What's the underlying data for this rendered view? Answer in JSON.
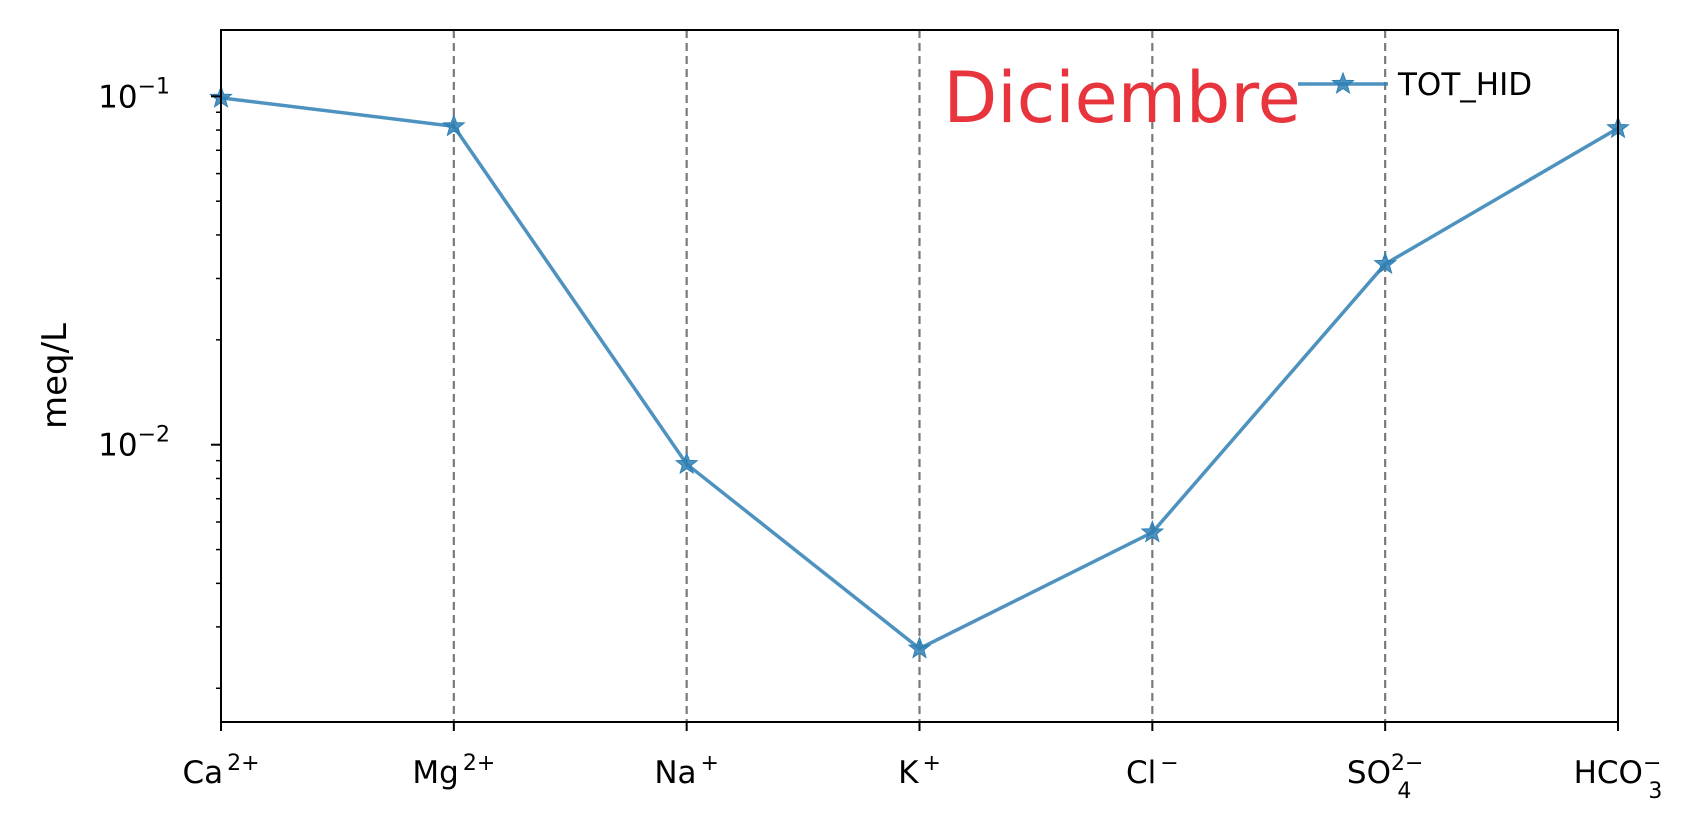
{
  "chart_data": {
    "type": "line",
    "title": "Diciembre",
    "title_color": "#e8343c",
    "ylabel": "meq/L",
    "xlabel": "",
    "yscale": "log",
    "ylim": [
      0.0016,
      0.155
    ],
    "categories": [
      {
        "base": "Ca",
        "sup": "2+",
        "sub": ""
      },
      {
        "base": "Mg",
        "sup": "2+",
        "sub": ""
      },
      {
        "base": "Na",
        "sup": "+",
        "sub": ""
      },
      {
        "base": "K",
        "sup": "+",
        "sub": ""
      },
      {
        "base": "Cl",
        "sup": "−",
        "sub": ""
      },
      {
        "base": "SO",
        "sup": "2−",
        "sub": "4"
      },
      {
        "base": "HCO",
        "sup": "−",
        "sub": "3"
      }
    ],
    "yticks": [
      {
        "value": 0.01,
        "base": "10",
        "exp": "−2"
      },
      {
        "value": 0.1,
        "base": "10",
        "exp": "−1"
      }
    ],
    "series": [
      {
        "name": "TOT_HID",
        "color": "#2f7fb4",
        "marker": "star-icon",
        "values": [
          0.099,
          0.082,
          0.0088,
          0.0026,
          0.0056,
          0.033,
          0.081
        ]
      }
    ],
    "legend": {
      "placement": "top-right"
    },
    "grid": {
      "vertical_dashed": true,
      "horizontal": false
    }
  }
}
